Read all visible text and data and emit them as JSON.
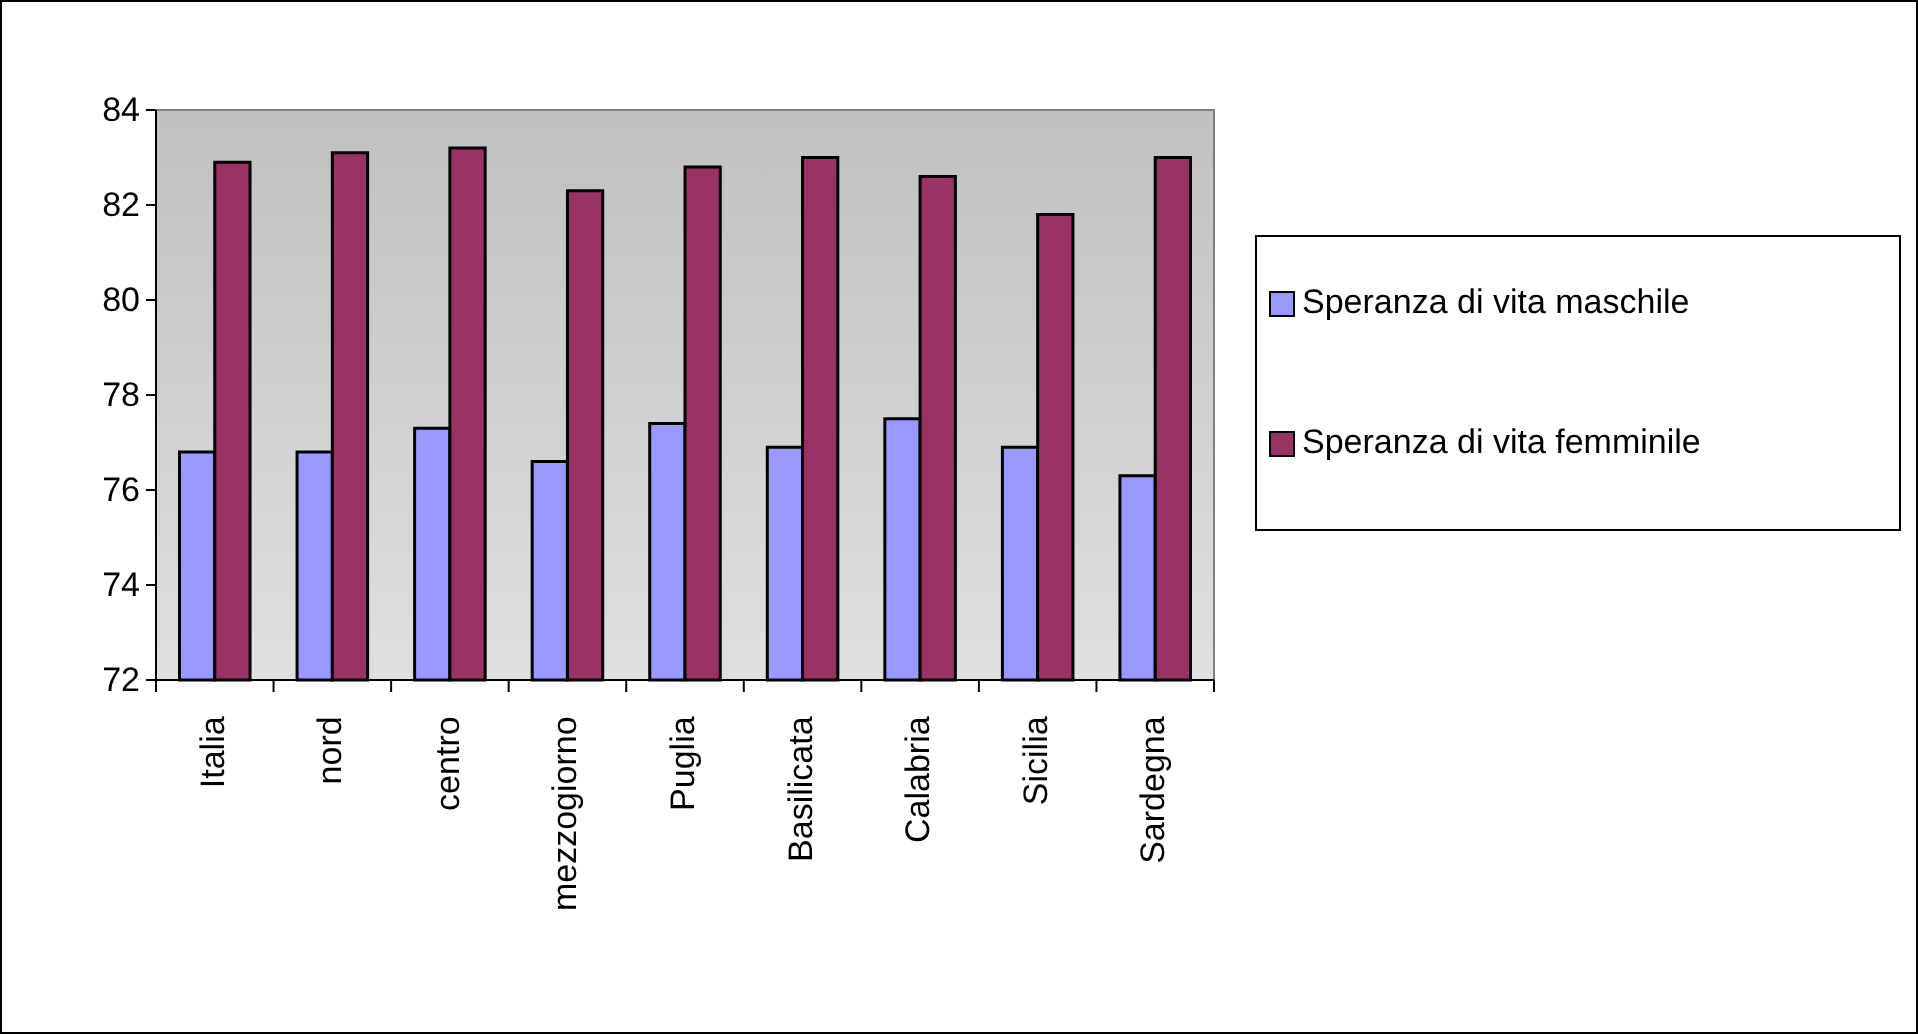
{
  "chart_data": {
    "type": "bar",
    "categories": [
      "Italia",
      "nord",
      "centro",
      "mezzogiorno",
      "Puglia",
      "Basilicata",
      "Calabria",
      "Sicilia",
      "Sardegna"
    ],
    "series": [
      {
        "name": "Speranza di vita maschile",
        "color": "#9999ff",
        "values": [
          76.8,
          76.8,
          77.3,
          76.6,
          77.4,
          76.9,
          77.5,
          76.9,
          76.3
        ]
      },
      {
        "name": "Speranza di vita femminile",
        "color": "#993366",
        "values": [
          82.9,
          83.1,
          83.2,
          82.3,
          82.8,
          83.0,
          82.6,
          81.8,
          83.0
        ]
      }
    ],
    "ylim": [
      72,
      84
    ],
    "yticks": [
      72,
      74,
      76,
      78,
      80,
      82,
      84
    ],
    "grid": false,
    "legend": "right"
  }
}
